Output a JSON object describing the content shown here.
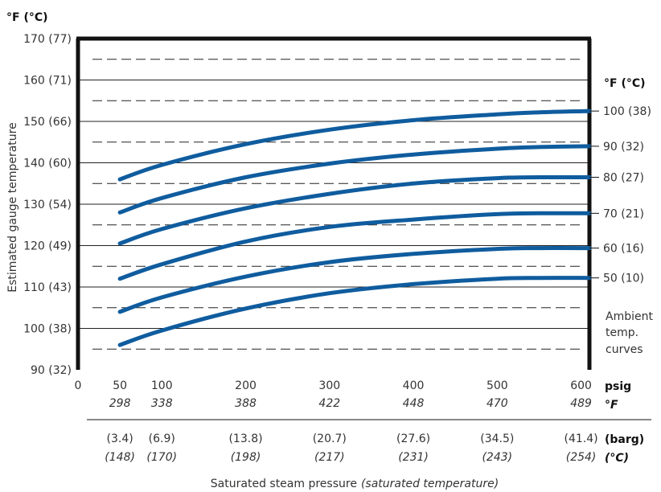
{
  "chart_data": {
    "type": "line",
    "y_unit_label": "°F (°C)",
    "right_unit_label": "°F (°C)",
    "ylabel": "Estimated gauge temperature",
    "xlabel": "Saturated steam pressure",
    "xlabel_italic": "(saturated temperature)",
    "ylim": [
      90,
      170
    ],
    "xlim": [
      0,
      610
    ],
    "y_ticks": [
      {
        "value": 90,
        "label": "90 (32)"
      },
      {
        "value": 100,
        "label": "100 (38)"
      },
      {
        "value": 110,
        "label": "110 (43)"
      },
      {
        "value": 120,
        "label": "120 (49)"
      },
      {
        "value": 130,
        "label": "130 (54)"
      },
      {
        "value": 140,
        "label": "140 (60)"
      },
      {
        "value": 150,
        "label": "150 (66)"
      },
      {
        "value": 160,
        "label": "160 (71)"
      },
      {
        "value": 170,
        "label": "170 (77)"
      }
    ],
    "dashed_lines": [
      95,
      105,
      115,
      125,
      135,
      145,
      155,
      165
    ],
    "x_ticks": [
      {
        "value": 0,
        "psig": "0",
        "f": "",
        "barg": "",
        "c": ""
      },
      {
        "value": 50,
        "psig": "50",
        "f": "298",
        "barg": "(3.4)",
        "c": "(148)"
      },
      {
        "value": 100,
        "psig": "100",
        "f": "338",
        "barg": "(6.9)",
        "c": "(170)"
      },
      {
        "value": 200,
        "psig": "200",
        "f": "388",
        "barg": "(13.8)",
        "c": "(198)"
      },
      {
        "value": 300,
        "psig": "300",
        "f": "422",
        "barg": "(20.7)",
        "c": "(217)"
      },
      {
        "value": 400,
        "psig": "400",
        "f": "448",
        "barg": "(27.6)",
        "c": "(231)"
      },
      {
        "value": 500,
        "psig": "500",
        "f": "470",
        "barg": "(34.5)",
        "c": "(243)"
      },
      {
        "value": 600,
        "psig": "600",
        "f": "489",
        "barg": "(41.4)",
        "c": "(254)"
      }
    ],
    "row_labels": {
      "psig": "psig",
      "f": "°F",
      "barg": "(barg)",
      "c": "(°C)"
    },
    "x": [
      50,
      100,
      200,
      300,
      400,
      500,
      550,
      610
    ],
    "series": [
      {
        "name": "100 (38)",
        "values": [
          136,
          139.5,
          144.5,
          148,
          150.3,
          151.7,
          152.2,
          152.5
        ]
      },
      {
        "name": "90 (32)",
        "values": [
          128,
          131.5,
          136.5,
          139.8,
          142,
          143.4,
          143.8,
          144
        ]
      },
      {
        "name": "80 (27)",
        "values": [
          120.5,
          124,
          129,
          132.5,
          135,
          136.3,
          136.5,
          136.5
        ]
      },
      {
        "name": "70 (21)",
        "values": [
          112,
          115.5,
          121,
          124.5,
          126.3,
          127.6,
          127.8,
          127.8
        ]
      },
      {
        "name": "60 (16)",
        "values": [
          104,
          107.5,
          112.5,
          116,
          118,
          119.2,
          119.4,
          119.4
        ]
      },
      {
        "name": "50 (10)",
        "values": [
          96,
          99.5,
          104.8,
          108.5,
          110.7,
          112,
          112.2,
          112.2
        ]
      }
    ],
    "ambient_label": [
      "Ambient",
      "temp.",
      "curves"
    ],
    "line_color": "#0f5c9e",
    "grid": true
  }
}
